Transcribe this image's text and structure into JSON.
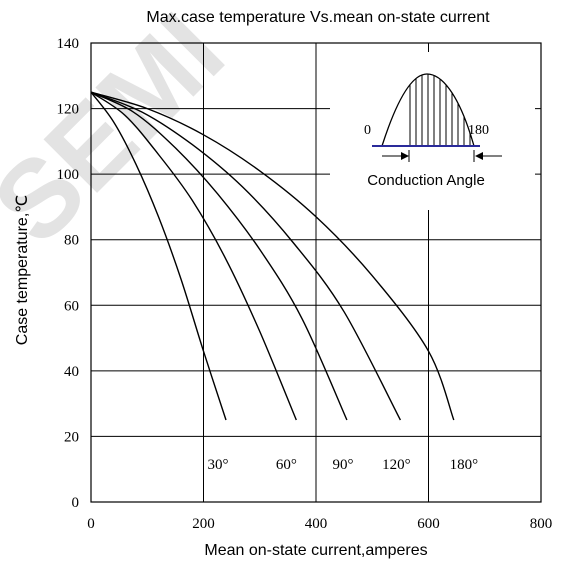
{
  "chart_data": {
    "type": "line",
    "title": "Max.case temperature Vs.mean on-state current",
    "xlabel": "Mean on-state current,amperes",
    "ylabel": "Case temperature,℃",
    "xlim": [
      0,
      800
    ],
    "ylim": [
      0,
      140
    ],
    "xticks": [
      0,
      200,
      400,
      600,
      800
    ],
    "yticks": [
      0,
      20,
      40,
      60,
      80,
      100,
      120,
      140
    ],
    "grid": true,
    "series": [
      {
        "name": "30°",
        "x": [
          0,
          40,
          80,
          120,
          160,
          200,
          240
        ],
        "y": [
          125,
          116,
          103,
          87,
          68,
          46,
          25
        ]
      },
      {
        "name": "60°",
        "x": [
          0,
          60,
          120,
          180,
          240,
          300,
          365
        ],
        "y": [
          125,
          118,
          106,
          92,
          74,
          52,
          25
        ]
      },
      {
        "name": "90°",
        "x": [
          0,
          75,
          150,
          225,
          300,
          375,
          455
        ],
        "y": [
          125,
          119,
          108,
          94,
          77,
          56,
          25
        ]
      },
      {
        "name": "120°",
        "x": [
          0,
          90,
          180,
          270,
          360,
          450,
          550
        ],
        "y": [
          125,
          119,
          109,
          96,
          79,
          58,
          25
        ]
      },
      {
        "name": "180°",
        "x": [
          0,
          100,
          200,
          300,
          400,
          500,
          600,
          645
        ],
        "y": [
          125,
          120,
          112,
          101,
          87,
          69,
          46,
          25
        ]
      }
    ],
    "inset": {
      "left_label": "0",
      "right_label": "180",
      "caption": "Conduction Angle"
    }
  },
  "watermark": "SEMI"
}
